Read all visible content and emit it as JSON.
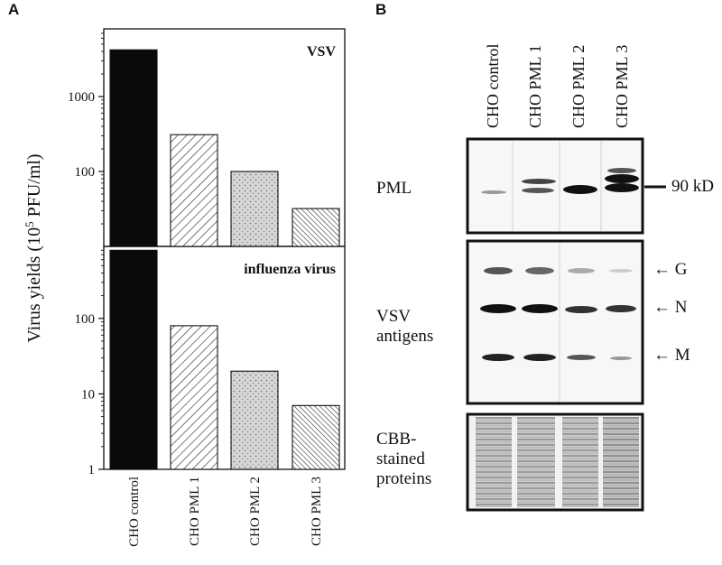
{
  "panels": {
    "a": "A",
    "b": "B"
  },
  "ylabel_parts": {
    "pre": "Virus yields (10",
    "sup": "5",
    "post": " PFU/ml)"
  },
  "chart_data": [
    {
      "type": "bar",
      "title": "VSV",
      "categories": [
        "CHO  control",
        "CHO PML 1",
        "CHO PML 2",
        "CHO PML 3"
      ],
      "values": [
        4200,
        310,
        100,
        32
      ],
      "yscale": "log",
      "ylim": [
        10,
        8000
      ],
      "yticks": [
        100,
        1000
      ],
      "ytick_labels": [
        "100",
        "1000"
      ],
      "bar_fills": [
        "solid-black",
        "diagonal-hatch",
        "dotted-gray",
        "dense-diagonal-hatch"
      ],
      "ylabel": "Virus yields (10^5 PFU/ml)"
    },
    {
      "type": "bar",
      "title": "influenza virus",
      "categories": [
        "CHO  control",
        "CHO PML 1",
        "CHO PML 2",
        "CHO PML 3"
      ],
      "values": [
        800,
        80,
        20,
        7
      ],
      "yscale": "log",
      "ylim": [
        1,
        900
      ],
      "yticks": [
        1,
        10,
        100
      ],
      "ytick_labels": [
        "1",
        "10",
        "100"
      ],
      "bar_fills": [
        "solid-black",
        "diagonal-hatch",
        "dotted-gray",
        "dense-diagonal-hatch"
      ],
      "ylabel": "Virus yields (10^5 PFU/ml)"
    }
  ],
  "blot": {
    "lanes": [
      "CHO control",
      "CHO PML 1",
      "CHO PML 2",
      "CHO PML 3"
    ],
    "rows": [
      {
        "label_lines": [
          "PML"
        ],
        "markers": [
          "90 kD"
        ]
      },
      {
        "label_lines": [
          "VSV",
          "antigens"
        ],
        "markers": [
          "G",
          "N",
          "M"
        ]
      },
      {
        "label_lines": [
          "CBB-",
          "stained",
          "proteins"
        ],
        "markers": []
      }
    ],
    "marker_arrow": "←"
  }
}
